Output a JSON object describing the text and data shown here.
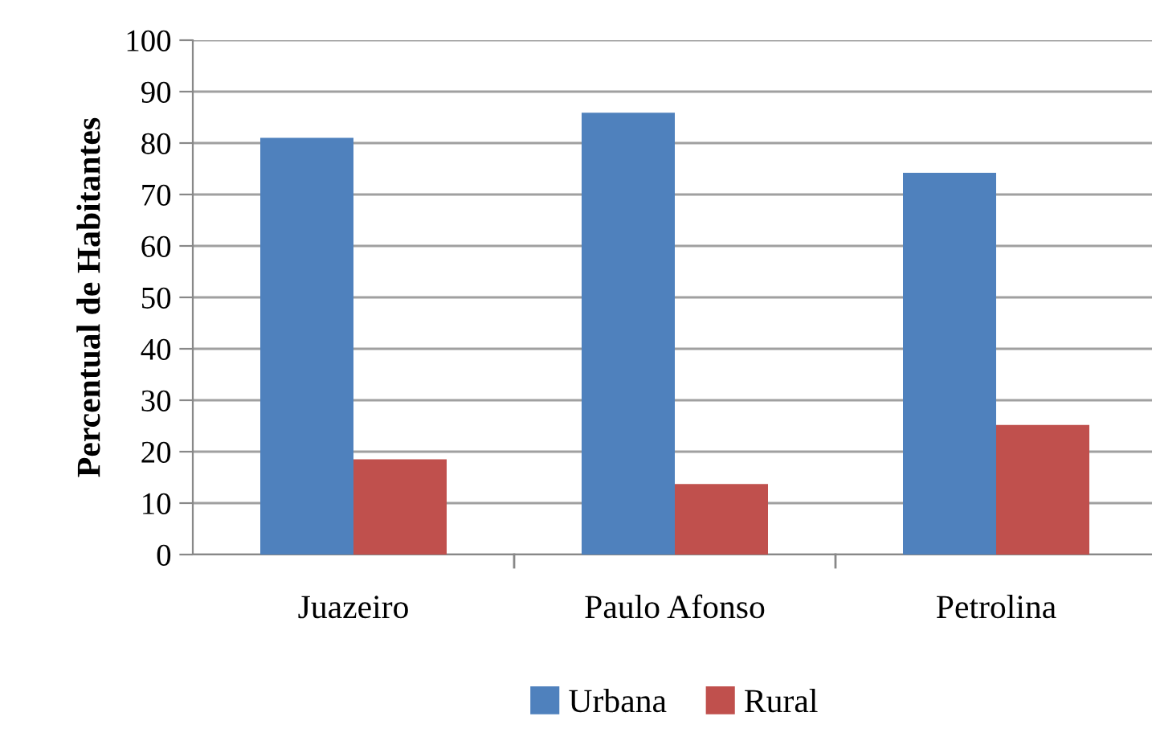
{
  "chart_data": {
    "type": "bar",
    "ylabel": "Percentual de Habitantes",
    "categories": [
      "Juazeiro",
      "Paulo Afonso",
      "Petrolina"
    ],
    "series": [
      {
        "name": "Urbana",
        "color": "#4f81bd",
        "values": [
          81.0,
          85.9,
          74.2
        ]
      },
      {
        "name": "Rural",
        "color": "#c0504d",
        "values": [
          18.5,
          13.7,
          25.2
        ]
      }
    ],
    "ylim": [
      0,
      100
    ],
    "yticks": [
      0,
      10,
      20,
      30,
      40,
      50,
      60,
      70,
      80,
      90,
      100
    ],
    "grid": "y",
    "legend": "bottom"
  }
}
